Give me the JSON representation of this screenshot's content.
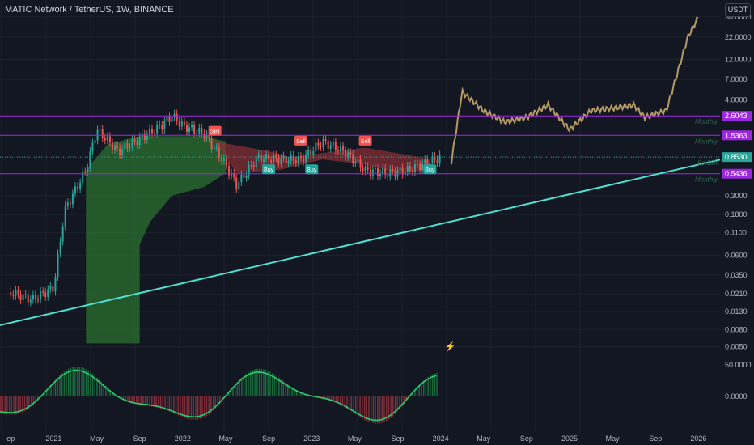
{
  "header": {
    "title": "MATIC Network / TetherUS, 1W, BINANCE",
    "currency": "USDT"
  },
  "colors": {
    "background": "#131722",
    "up": "#26a69a",
    "down": "#ef5350",
    "gold": "#c8a96a",
    "purple": "#9c27e0",
    "trendline": "#4ee0d0",
    "cloud_green": "#2e7d32",
    "cloud_red": "#8b2f35"
  },
  "chart_data": {
    "type": "line",
    "price_axis": {
      "scale": "log",
      "ticks": [
        "38.0000",
        "22.0000",
        "12.0000",
        "7.0000",
        "4.0000",
        "2.6043",
        "1.5363",
        "0.8530",
        "0.5436",
        "0.3000",
        "0.1800",
        "0.1100",
        "0.0600",
        "0.0350",
        "0.0210",
        "0.0130",
        "0.0080",
        "0.0050"
      ]
    },
    "oscillator_axis": {
      "ticks": [
        "50.0000",
        "0.0000"
      ]
    },
    "time_axis": {
      "labels": [
        "ep",
        "2021",
        "May",
        "Sep",
        "2022",
        "May",
        "Sep",
        "2023",
        "May",
        "Sep",
        "2024",
        "May",
        "Sep",
        "2025",
        "May",
        "Sep",
        "2026"
      ]
    },
    "price_labels": [
      {
        "value": "2.6043",
        "note": "Monthly",
        "color": "#9c27e0"
      },
      {
        "value": "1.5363",
        "note": "Monthly",
        "color": "#9c27e0"
      },
      {
        "value": "0.8530",
        "note": "5d 19h",
        "color": "#26a69a"
      },
      {
        "value": "0.5436",
        "note": "Monthly",
        "color": "#9c27e0"
      }
    ],
    "signals": [
      {
        "label": "Sell",
        "date": "2022-04",
        "price": 1.7
      },
      {
        "label": "Sell",
        "date": "2022-12",
        "price": 1.3
      },
      {
        "label": "Sell",
        "date": "2023-06",
        "price": 1.3
      },
      {
        "label": "Buy",
        "date": "2022-09",
        "price": 0.6
      },
      {
        "label": "Buy",
        "date": "2023-01",
        "price": 0.6
      },
      {
        "label": "Buy",
        "date": "2023-12",
        "price": 0.6
      }
    ],
    "historical_close": [
      [
        "2020-09",
        0.022
      ],
      [
        "2020-11",
        0.018
      ],
      [
        "2021-01",
        0.025
      ],
      [
        "2021-02",
        0.2
      ],
      [
        "2021-03",
        0.35
      ],
      [
        "2021-04",
        0.6
      ],
      [
        "2021-05",
        1.8
      ],
      [
        "2021-07",
        1.0
      ],
      [
        "2021-09",
        1.4
      ],
      [
        "2021-11",
        2.0
      ],
      [
        "2021-12",
        2.6
      ],
      [
        "2022-01",
        2.0
      ],
      [
        "2022-03",
        1.6
      ],
      [
        "2022-05",
        0.7
      ],
      [
        "2022-06",
        0.4
      ],
      [
        "2022-08",
        0.85
      ],
      [
        "2022-10",
        0.8
      ],
      [
        "2022-12",
        0.8
      ],
      [
        "2023-02",
        1.3
      ],
      [
        "2023-04",
        1.0
      ],
      [
        "2023-06",
        0.6
      ],
      [
        "2023-08",
        0.55
      ],
      [
        "2023-10",
        0.6
      ],
      [
        "2024-01",
        0.85
      ]
    ],
    "projection": [
      [
        "2024-02",
        0.75
      ],
      [
        "2024-03",
        5.0
      ],
      [
        "2024-05",
        3.0
      ],
      [
        "2024-07",
        2.2
      ],
      [
        "2024-09",
        2.5
      ],
      [
        "2024-11",
        3.5
      ],
      [
        "2025-01",
        1.8
      ],
      [
        "2025-03",
        3.0
      ],
      [
        "2025-05",
        3.2
      ],
      [
        "2025-07",
        3.5
      ],
      [
        "2025-08",
        2.5
      ],
      [
        "2025-10",
        3.0
      ],
      [
        "2025-11",
        8.0
      ],
      [
        "2025-12",
        22.0
      ],
      [
        "2026-01",
        38.0
      ]
    ],
    "trendline": [
      [
        "2020-08",
        0.009
      ],
      [
        "2026-04",
        0.85
      ]
    ],
    "horizontal_levels": [
      2.6043,
      1.5363,
      0.5436
    ],
    "oscillator_marker": "⚡"
  }
}
